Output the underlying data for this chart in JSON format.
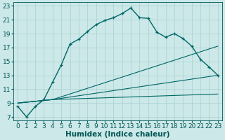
{
  "xlabel": "Humidex (Indice chaleur)",
  "background_color": "#cce8e8",
  "grid_color": "#a8d0d0",
  "line_color": "#006666",
  "xlim": [
    -0.5,
    23.5
  ],
  "ylim": [
    6.5,
    23.5
  ],
  "yticks": [
    7,
    9,
    11,
    13,
    15,
    17,
    19,
    21,
    23
  ],
  "xticks": [
    0,
    1,
    2,
    3,
    4,
    5,
    6,
    7,
    8,
    9,
    10,
    11,
    12,
    13,
    14,
    15,
    16,
    17,
    18,
    19,
    20,
    21,
    22,
    23
  ],
  "line1_x": [
    0,
    1,
    2,
    3,
    4,
    5,
    6,
    7,
    8,
    9,
    10,
    11,
    12,
    13,
    14,
    15,
    16,
    17,
    18,
    19,
    20,
    21,
    22,
    23
  ],
  "line1_y": [
    8.5,
    7.0,
    8.5,
    9.5,
    12.0,
    14.5,
    17.5,
    18.2,
    19.3,
    20.3,
    20.9,
    21.3,
    21.9,
    22.7,
    21.3,
    21.2,
    19.2,
    18.5,
    19.0,
    18.3,
    17.2,
    15.3,
    14.2,
    13.0
  ],
  "line2_x": [
    0,
    4,
    23
  ],
  "line2_y": [
    9.0,
    9.5,
    13.0
  ],
  "line3_x": [
    0,
    4,
    23
  ],
  "line3_y": [
    9.0,
    9.5,
    17.2
  ],
  "line4_x": [
    0,
    4,
    23
  ],
  "line4_y": [
    9.0,
    9.5,
    10.3
  ],
  "font_color": "#005555",
  "font_size": 6.5,
  "xlabel_fontsize": 7.5
}
